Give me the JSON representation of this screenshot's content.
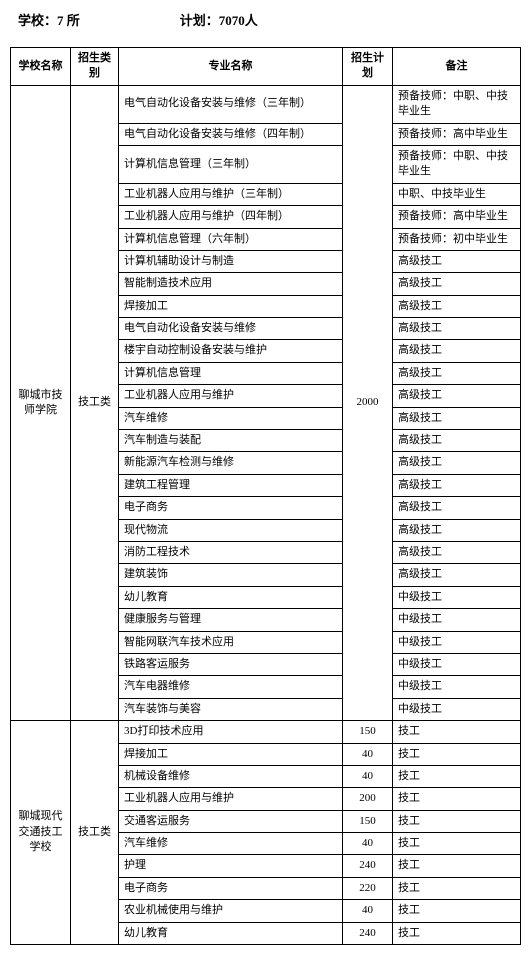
{
  "header": {
    "schools_label": "学校：7 所",
    "plan_label": "计划：7070人"
  },
  "columns": {
    "school": "学校名称",
    "category": "招生类别",
    "major": "专业名称",
    "plan": "招生计划",
    "remark": "备注"
  },
  "school1": {
    "name": "聊城市技师学院",
    "category": "技工类",
    "plan": "2000",
    "rows": [
      {
        "major": "电气自动化设备安装与维修（三年制）",
        "remark": "预备技师：中职、中技毕业生"
      },
      {
        "major": "电气自动化设备安装与维修（四年制）",
        "remark": "预备技师：高中毕业生"
      },
      {
        "major": "计算机信息管理（三年制）",
        "remark": "预备技师：中职、中技毕业生"
      },
      {
        "major": "工业机器人应用与维护（三年制）",
        "remark": "中职、中技毕业生"
      },
      {
        "major": "工业机器人应用与维护（四年制）",
        "remark": "预备技师：高中毕业生"
      },
      {
        "major": "计算机信息管理（六年制）",
        "remark": "预备技师：初中毕业生"
      },
      {
        "major": "计算机辅助设计与制造",
        "remark": "高级技工"
      },
      {
        "major": "智能制造技术应用",
        "remark": "高级技工"
      },
      {
        "major": "焊接加工",
        "remark": "高级技工"
      },
      {
        "major": "电气自动化设备安装与维修",
        "remark": "高级技工"
      },
      {
        "major": "楼宇自动控制设备安装与维护",
        "remark": "高级技工"
      },
      {
        "major": "计算机信息管理",
        "remark": "高级技工"
      },
      {
        "major": "工业机器人应用与维护",
        "remark": "高级技工"
      },
      {
        "major": "汽车维修",
        "remark": "高级技工"
      },
      {
        "major": "汽车制造与装配",
        "remark": "高级技工"
      },
      {
        "major": "新能源汽车检测与维修",
        "remark": "高级技工"
      },
      {
        "major": "建筑工程管理",
        "remark": "高级技工"
      },
      {
        "major": "电子商务",
        "remark": "高级技工"
      },
      {
        "major": "现代物流",
        "remark": "高级技工"
      },
      {
        "major": "消防工程技术",
        "remark": "高级技工"
      },
      {
        "major": "建筑装饰",
        "remark": "高级技工"
      },
      {
        "major": "幼儿教育",
        "remark": "中级技工"
      },
      {
        "major": "健康服务与管理",
        "remark": "中级技工"
      },
      {
        "major": "智能网联汽车技术应用",
        "remark": "中级技工"
      },
      {
        "major": "铁路客运服务",
        "remark": "中级技工"
      },
      {
        "major": "汽车电器维修",
        "remark": "中级技工"
      },
      {
        "major": "汽车装饰与美容",
        "remark": "中级技工"
      }
    ]
  },
  "school2": {
    "name": "聊城现代交通技工学校",
    "category": "技工类",
    "rows": [
      {
        "major": "3D打印技术应用",
        "plan": "150",
        "remark": "技工"
      },
      {
        "major": "焊接加工",
        "plan": "40",
        "remark": "技工"
      },
      {
        "major": "机械设备维修",
        "plan": "40",
        "remark": "技工"
      },
      {
        "major": "工业机器人应用与维护",
        "plan": "200",
        "remark": "技工"
      },
      {
        "major": "交通客运服务",
        "plan": "150",
        "remark": "技工"
      },
      {
        "major": "汽车维修",
        "plan": "40",
        "remark": "技工"
      },
      {
        "major": "护理",
        "plan": "240",
        "remark": "技工"
      },
      {
        "major": "电子商务",
        "plan": "220",
        "remark": "技工"
      },
      {
        "major": "农业机械使用与维护",
        "plan": "40",
        "remark": "技工"
      },
      {
        "major": "幼儿教育",
        "plan": "240",
        "remark": "技工"
      }
    ]
  }
}
